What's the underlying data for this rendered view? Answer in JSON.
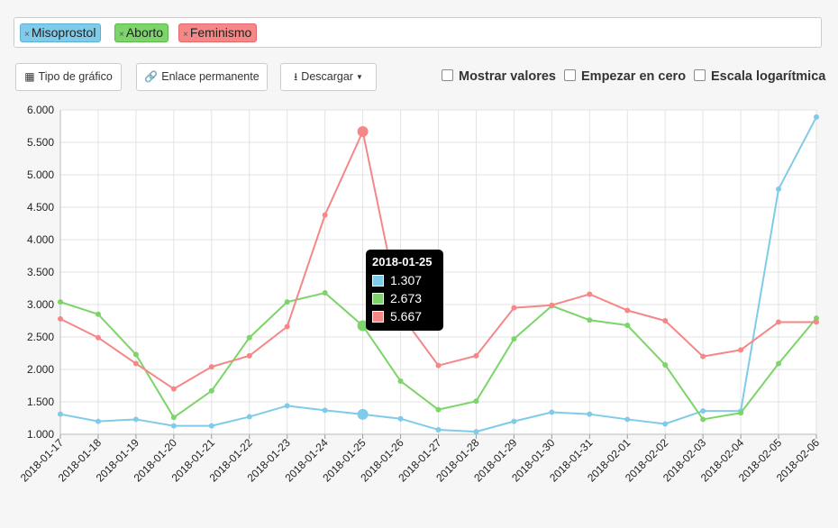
{
  "tags": [
    {
      "label": "Misoprostol",
      "remove_glyph": "×"
    },
    {
      "label": "Aborto",
      "remove_glyph": "×"
    },
    {
      "label": "Feminismo",
      "remove_glyph": "×"
    }
  ],
  "toolbar": {
    "chart_type_label": "Tipo de gráfico",
    "permalink_label": "Enlace permanente",
    "download_label": "Descargar"
  },
  "options": {
    "show_values_label": "Mostrar valores",
    "start_zero_label": "Empezar en cero",
    "log_scale_label": "Escala logarítmica"
  },
  "tooltip": {
    "title": "2018-01-25",
    "values": [
      "1.307",
      "2.673",
      "5.667"
    ]
  },
  "colors": {
    "misoprostol": "#7fcbe9",
    "aborto": "#7cd46a",
    "feminismo": "#f58787"
  },
  "chart_data": {
    "type": "line",
    "x": [
      "2018-01-17",
      "2018-01-18",
      "2018-01-19",
      "2018-01-20",
      "2018-01-21",
      "2018-01-22",
      "2018-01-23",
      "2018-01-24",
      "2018-01-25",
      "2018-01-26",
      "2018-01-27",
      "2018-01-28",
      "2018-01-29",
      "2018-01-30",
      "2018-01-31",
      "2018-02-01",
      "2018-02-02",
      "2018-02-03",
      "2018-02-04",
      "2018-02-05",
      "2018-02-06"
    ],
    "y_ticks": [
      "1.000",
      "1.500",
      "2.000",
      "2.500",
      "3.000",
      "3.500",
      "4.000",
      "4.500",
      "5.000",
      "5.500",
      "6.000"
    ],
    "ylim": [
      1000,
      6000
    ],
    "grid": true,
    "series": [
      {
        "name": "Misoprostol",
        "color": "#7fcbe9",
        "values": [
          1310,
          1200,
          1230,
          1130,
          1130,
          1270,
          1440,
          1370,
          1307,
          1240,
          1070,
          1040,
          1200,
          1340,
          1310,
          1230,
          1160,
          1360,
          1360,
          4780,
          5890
        ]
      },
      {
        "name": "Aborto",
        "color": "#7cd46a",
        "values": [
          3040,
          2850,
          2230,
          1260,
          1670,
          2490,
          3040,
          3180,
          2673,
          1820,
          1380,
          1510,
          2470,
          2980,
          2760,
          2680,
          2070,
          1230,
          1330,
          2090,
          2790
        ]
      },
      {
        "name": "Feminismo",
        "color": "#f58787",
        "values": [
          2780,
          2490,
          2090,
          1700,
          2040,
          2210,
          2660,
          4380,
          5667,
          2850,
          2060,
          2210,
          2950,
          2990,
          3160,
          2910,
          2750,
          2200,
          2300,
          2730,
          2730
        ]
      }
    ],
    "highlight_index": 8
  }
}
